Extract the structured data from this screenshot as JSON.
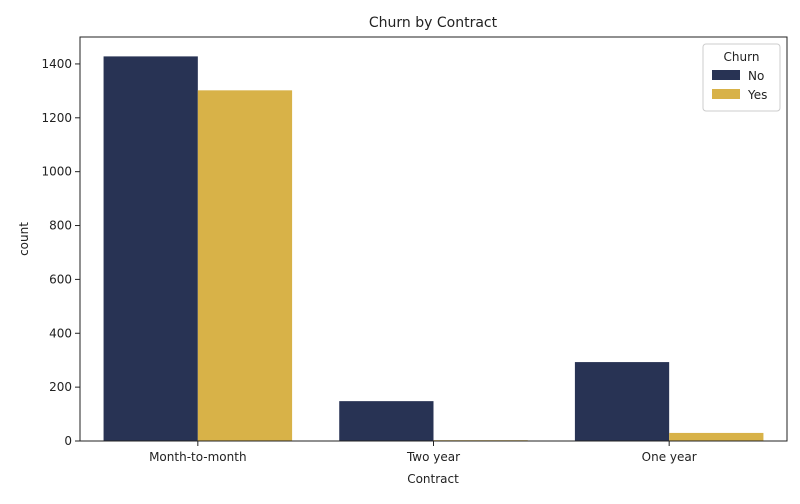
{
  "chart_data": {
    "type": "bar",
    "title": "Churn by Contract",
    "xlabel": "Contract",
    "ylabel": "count",
    "categories": [
      "Month-to-month",
      "Two year",
      "One year"
    ],
    "series": [
      {
        "name": "No",
        "values": [
          1428,
          148,
          293
        ],
        "color": "#283354"
      },
      {
        "name": "Yes",
        "values": [
          1302,
          3,
          30
        ],
        "color": "#d8b248"
      }
    ],
    "ylim": [
      0,
      1500
    ],
    "yticks": [
      0,
      200,
      400,
      600,
      800,
      1000,
      1200,
      1400
    ],
    "grid": false,
    "legend": {
      "title": "Churn",
      "placement": "top-right"
    }
  }
}
